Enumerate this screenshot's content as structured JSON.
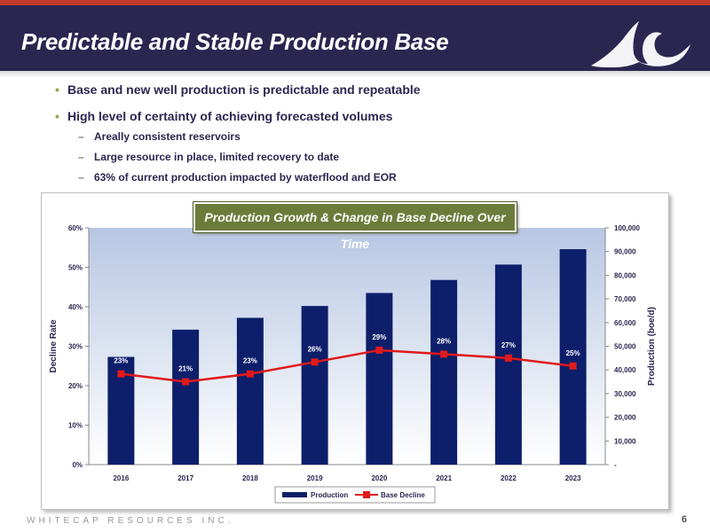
{
  "slide": {
    "title": "Predictable and Stable Production Base",
    "company": "WHITECAP RESOURCES INC.",
    "page_number": "6",
    "bullet_symbol": "•",
    "dash_symbol": "–",
    "bullets": [
      "Base and new well production is predictable and repeatable",
      "High level of certainty of achieving forecasted volumes"
    ],
    "sub_bullets": [
      "Areally consistent reservoirs",
      "Large resource in place, limited recovery to date",
      "63% of current production impacted by waterflood and EOR"
    ],
    "colors": {
      "title_bar": "#2b2650",
      "accent_red": "#c0392b",
      "bar_navy": "#0d1f6b",
      "line_red": "#e0191b",
      "title_box_olive": "#6b7c3a"
    }
  },
  "chart_data": {
    "type": "bar",
    "title": "Production Growth & Change in Base Decline Over Time",
    "categories": [
      "2016",
      "2017",
      "2018",
      "2019",
      "2020",
      "2021",
      "2022",
      "2023"
    ],
    "series": [
      {
        "name": "Production",
        "type": "bar",
        "axis": "right",
        "values": [
          45500,
          57000,
          62000,
          67000,
          72500,
          78000,
          84500,
          91000
        ]
      },
      {
        "name": "Base Decline",
        "type": "line",
        "axis": "left",
        "values": [
          23,
          21,
          23,
          26,
          29,
          28,
          27,
          25
        ],
        "labels": [
          "23%",
          "21%",
          "23%",
          "26%",
          "29%",
          "28%",
          "27%",
          "25%"
        ]
      }
    ],
    "ylabel": "Decline Rate",
    "y2label": "Production (boe/d)",
    "ylim": [
      0,
      60
    ],
    "y2lim": [
      0,
      100000
    ],
    "y_ticks": [
      {
        "value": 0,
        "label": "0%"
      },
      {
        "value": 10,
        "label": "10%"
      },
      {
        "value": 20,
        "label": "20%"
      },
      {
        "value": 30,
        "label": "30%"
      },
      {
        "value": 40,
        "label": "40%"
      },
      {
        "value": 50,
        "label": "50%"
      },
      {
        "value": 60,
        "label": "60%"
      }
    ],
    "y2_ticks": [
      {
        "value": 0,
        "label": "-"
      },
      {
        "value": 10000,
        "label": "10,000"
      },
      {
        "value": 20000,
        "label": "20,000"
      },
      {
        "value": 30000,
        "label": "30,000"
      },
      {
        "value": 40000,
        "label": "40,000"
      },
      {
        "value": 50000,
        "label": "50,000"
      },
      {
        "value": 60000,
        "label": "60,000"
      },
      {
        "value": 70000,
        "label": "70,000"
      },
      {
        "value": 80000,
        "label": "80,000"
      },
      {
        "value": 90000,
        "label": "90,000"
      },
      {
        "value": 100000,
        "label": "100,000"
      }
    ],
    "legend_position": "bottom",
    "grid": false
  }
}
